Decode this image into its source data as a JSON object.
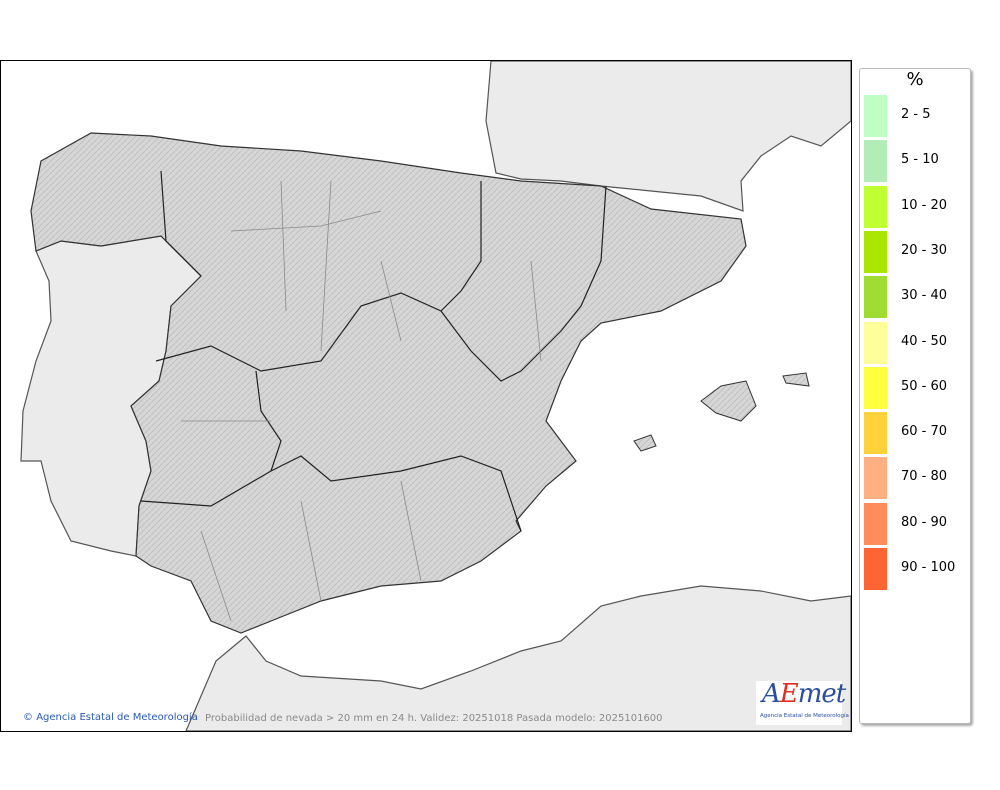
{
  "map": {
    "credit": "Agencia Estatal de Meteorología",
    "caption": "Probabilidad de nevada > 20 mm en 24 h. Validez: 20251018 Pasada modelo: 2025101600",
    "logo_text": "AEmet",
    "logo_subtitle": "Agencia Estatal de Meteorología",
    "colors": {
      "sea": "#ffffff",
      "foreign_land": "#ebebeb",
      "spain_land": "#d4d4d4"
    }
  },
  "legend": {
    "title": "%",
    "items": [
      {
        "label": "2 - 5",
        "color": "#c0ffc4"
      },
      {
        "label": "5 - 10",
        "color": "#b4ecb8"
      },
      {
        "label": "10 - 20",
        "color": "#c0ff32"
      },
      {
        "label": "20 - 30",
        "color": "#aae600"
      },
      {
        "label": "30 - 40",
        "color": "#a0dc32"
      },
      {
        "label": "40 - 50",
        "color": "#ffff9a"
      },
      {
        "label": "50 - 60",
        "color": "#ffff40"
      },
      {
        "label": "60 - 70",
        "color": "#ffd23c"
      },
      {
        "label": "70 - 80",
        "color": "#ffb082"
      },
      {
        "label": "80 - 90",
        "color": "#ff8c5a"
      },
      {
        "label": "90 - 100",
        "color": "#ff6432"
      }
    ]
  }
}
